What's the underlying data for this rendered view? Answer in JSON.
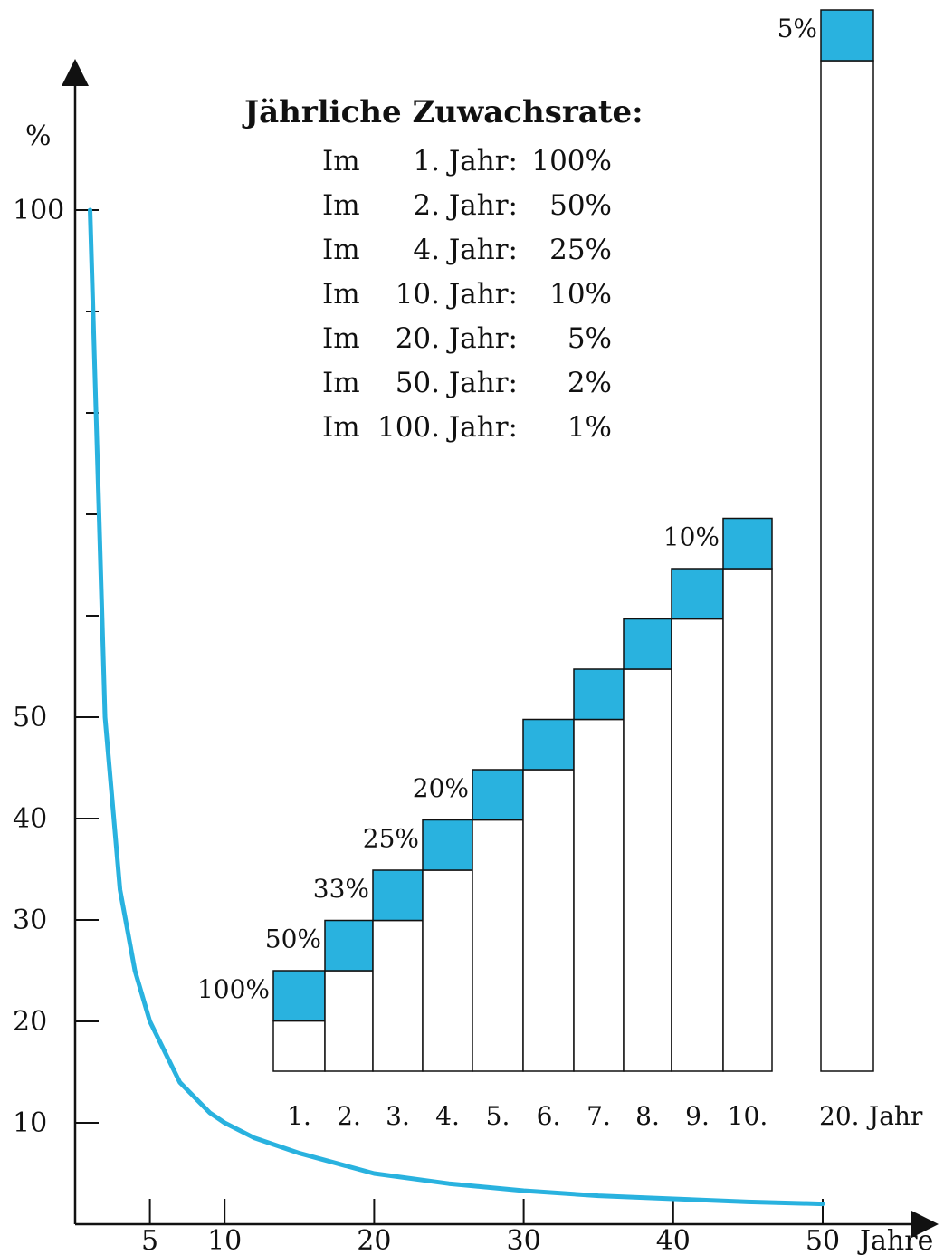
{
  "chart_data": [
    {
      "type": "line",
      "ylabel": "%",
      "xlabel": "Jahre",
      "xlim": [
        0,
        50
      ],
      "ylim": [
        0,
        100
      ],
      "x_ticks": [
        5,
        10,
        20,
        30,
        40,
        50
      ],
      "y_tick_labels": [
        10,
        20,
        30,
        40,
        50,
        100
      ],
      "y_minor_ticks": [
        60,
        70,
        80,
        90
      ],
      "color": "#29b2df",
      "series": [
        {
          "x": [
            1,
            2,
            3,
            4,
            5,
            6,
            7,
            8,
            9,
            10,
            12,
            15,
            20,
            25,
            30,
            35,
            40,
            45,
            50
          ],
          "y": [
            100,
            50,
            33,
            25,
            20,
            17,
            14,
            12.5,
            11,
            10,
            8.5,
            7,
            5,
            4,
            3.3,
            2.8,
            2.5,
            2.2,
            2
          ]
        }
      ]
    },
    {
      "type": "bar",
      "stacked": true,
      "categories": [
        "1.",
        "2.",
        "3.",
        "4.",
        "5.",
        "6.",
        "7.",
        "8.",
        "9.",
        "10.",
        "20."
      ],
      "category_unit": "Jahr",
      "base": [
        1,
        2,
        3,
        4,
        5,
        6,
        7,
        8,
        9,
        10,
        20
      ],
      "growth": [
        1,
        1,
        1,
        1,
        1,
        1,
        1,
        1,
        1,
        1,
        1
      ],
      "colors": {
        "base": "#ffffff",
        "growth": "#29b2df"
      },
      "annotations": [
        {
          "category": 0,
          "text": "100%"
        },
        {
          "category": 1,
          "text": "50%"
        },
        {
          "category": 2,
          "text": "33%"
        },
        {
          "category": 3,
          "text": "25%"
        },
        {
          "category": 4,
          "text": "20%"
        },
        {
          "category": 9,
          "text": "10%"
        },
        {
          "category": 10,
          "text": "5%"
        }
      ]
    }
  ],
  "legend": {
    "title": "Jährliche Zuwachsrate:",
    "rows": [
      {
        "prefix": "Im",
        "year": "1. Jahr:",
        "rate": "100%"
      },
      {
        "prefix": "Im",
        "year": "2. Jahr:",
        "rate": "50%"
      },
      {
        "prefix": "Im",
        "year": "4. Jahr:",
        "rate": "25%"
      },
      {
        "prefix": "Im",
        "year": "10. Jahr:",
        "rate": "10%"
      },
      {
        "prefix": "Im",
        "year": "20. Jahr:",
        "rate": "5%"
      },
      {
        "prefix": "Im",
        "year": "50. Jahr:",
        "rate": "2%"
      },
      {
        "prefix": "Im",
        "year": "100. Jahr:",
        "rate": "1%"
      }
    ]
  }
}
